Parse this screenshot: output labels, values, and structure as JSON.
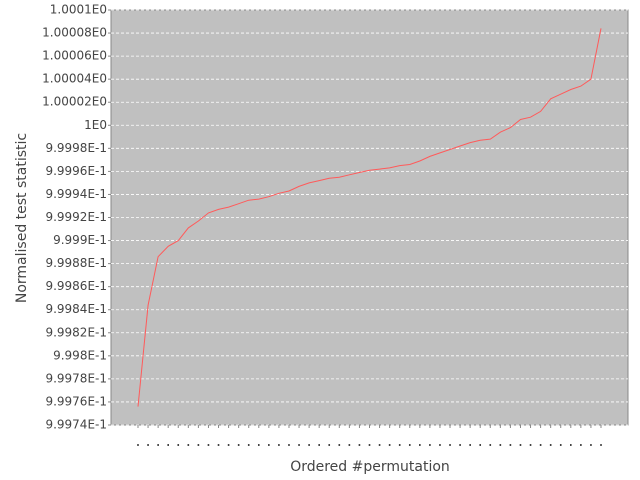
{
  "chart_data": {
    "type": "line",
    "y_label": "Normalised test statistic",
    "x_label": "Ordered #permutation",
    "categories": [
      null,
      null,
      null,
      null,
      null,
      null,
      null,
      null,
      null,
      null,
      null,
      null,
      null,
      null,
      null,
      null,
      null,
      null,
      null,
      null,
      null,
      null,
      null,
      null,
      null,
      null,
      null,
      null,
      null,
      null,
      null,
      null,
      null,
      null,
      null,
      null,
      null,
      null,
      null,
      null,
      null,
      null,
      null,
      null,
      null,
      null,
      null
    ],
    "series": [
      {
        "color": "#ff5a5a",
        "values": [
          0.999756,
          0.999844,
          0.999886,
          0.999895,
          0.9999,
          0.999911,
          0.999917,
          0.999924,
          0.999927,
          0.999929,
          0.999932,
          0.999935,
          0.999936,
          0.999938,
          0.999941,
          0.999943,
          0.999947,
          0.99995,
          0.999952,
          0.999954,
          0.999955,
          0.999957,
          0.999959,
          0.999961,
          0.999962,
          0.999963,
          0.999965,
          0.999966,
          0.999969,
          0.999973,
          0.999976,
          0.999979,
          0.999982,
          0.999985,
          0.999987,
          0.999988,
          0.999994,
          0.999998,
          1.000005,
          1.000007,
          1.000012,
          1.000023,
          1.000027,
          1.000031,
          1.000034,
          1.00004,
          1.000084
        ]
      }
    ],
    "ylim": [
      0.99974,
      1.0001
    ],
    "yticks": [
      {
        "value": 0.99974,
        "label": "9.9974E-1"
      },
      {
        "value": 0.99976,
        "label": "9.9976E-1"
      },
      {
        "value": 0.99978,
        "label": "9.9978E-1"
      },
      {
        "value": 0.9998,
        "label": "9.998E-1"
      },
      {
        "value": 0.99982,
        "label": "9.9982E-1"
      },
      {
        "value": 0.99984,
        "label": "9.9984E-1"
      },
      {
        "value": 0.99986,
        "label": "9.9986E-1"
      },
      {
        "value": 0.99988,
        "label": "9.9988E-1"
      },
      {
        "value": 0.9999,
        "label": "9.999E-1"
      },
      {
        "value": 0.99992,
        "label": "9.9992E-1"
      },
      {
        "value": 0.99994,
        "label": "9.9994E-1"
      },
      {
        "value": 0.99996,
        "label": "9.9996E-1"
      },
      {
        "value": 0.99998,
        "label": "9.9998E-1"
      },
      {
        "value": 1,
        "label": "1E0"
      },
      {
        "value": 1.00002,
        "label": "1.00002E0"
      },
      {
        "value": 1.00004,
        "label": "1.00004E0"
      },
      {
        "value": 1.00006,
        "label": "1.00006E0"
      },
      {
        "value": 1.00008,
        "label": "1.00008E0"
      },
      {
        "value": 1.0001,
        "label": "1.0001E0"
      }
    ],
    "grid": true,
    "background": "#c0c0c0"
  }
}
